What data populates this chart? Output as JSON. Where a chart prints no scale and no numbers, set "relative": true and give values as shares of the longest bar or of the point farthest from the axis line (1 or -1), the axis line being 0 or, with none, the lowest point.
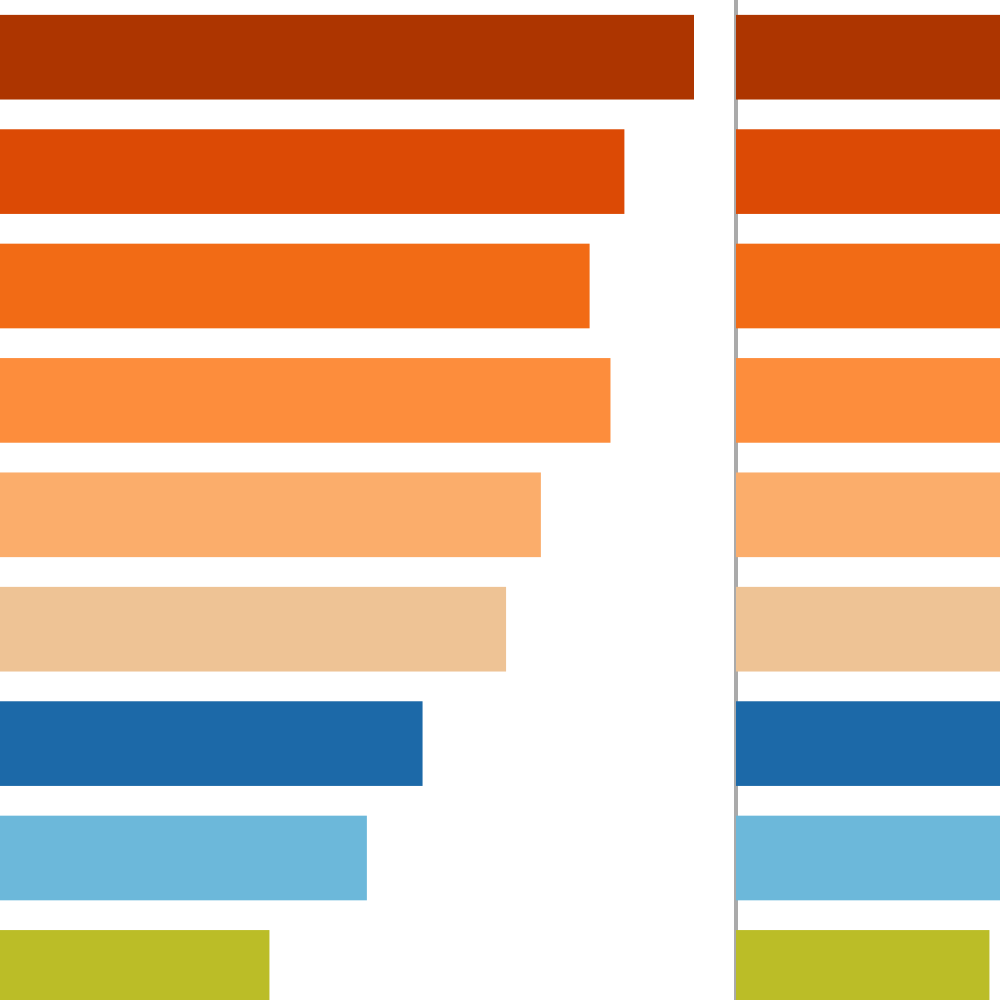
{
  "chart_data": [
    {
      "type": "bar",
      "orientation": "horizontal",
      "relative": true,
      "categories": [
        null,
        null,
        null,
        null,
        null,
        null,
        null,
        null,
        null
      ],
      "values": [
        1,
        0.9,
        0.85,
        0.88,
        0.78,
        0.73,
        0.61,
        0.53,
        0.39
      ],
      "colors": [
        "#ad3500",
        "#dc4a05",
        "#f26b15",
        "#fd8d3c",
        "#fbad6b",
        "#eec395",
        "#1c69a8",
        "#6cb8da",
        "#bbbd27"
      ]
    },
    {
      "type": "bar",
      "orientation": "horizontal",
      "relative": true,
      "categories": [
        null,
        null,
        null,
        null,
        null,
        null,
        null,
        null,
        null
      ],
      "values": [
        1,
        1,
        1,
        1,
        1,
        1,
        1,
        1,
        0.96
      ],
      "colors": [
        "#ad3500",
        "#dc4a05",
        "#f26b15",
        "#fd8d3c",
        "#fbad6b",
        "#eec395",
        "#1c69a8",
        "#6cb8da",
        "#bbbd27"
      ]
    }
  ]
}
